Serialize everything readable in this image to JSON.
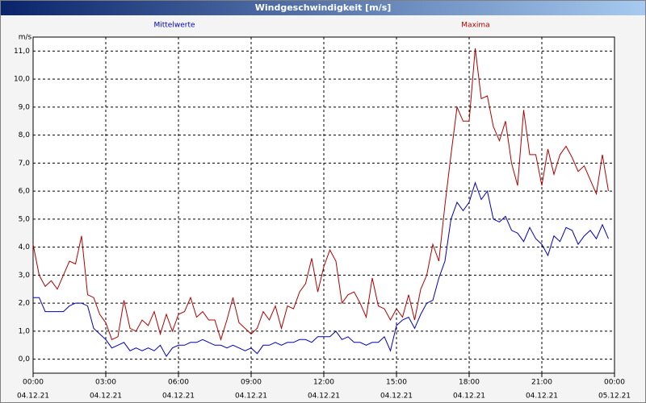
{
  "chart_data": {
    "type": "line",
    "title": "Windgeschwindigkeit [m/s]",
    "y_label": "m/s",
    "x": [
      0,
      0.25,
      0.5,
      0.75,
      1,
      1.25,
      1.5,
      1.75,
      2,
      2.25,
      2.5,
      2.75,
      3,
      3.25,
      3.5,
      3.75,
      4,
      4.25,
      4.5,
      4.75,
      5,
      5.25,
      5.5,
      5.75,
      6,
      6.25,
      6.5,
      6.75,
      7,
      7.25,
      7.5,
      7.75,
      8,
      8.25,
      8.5,
      8.75,
      9,
      9.25,
      9.5,
      9.75,
      10,
      10.25,
      10.5,
      10.75,
      11,
      11.25,
      11.5,
      11.75,
      12,
      12.25,
      12.5,
      12.75,
      13,
      13.25,
      13.5,
      13.75,
      14,
      14.25,
      14.5,
      14.75,
      15,
      15.25,
      15.5,
      15.75,
      16,
      16.25,
      16.5,
      16.75,
      17,
      17.25,
      17.5,
      17.75,
      18,
      18.25,
      18.5,
      18.75,
      19,
      19.25,
      19.5,
      19.75,
      20,
      20.25,
      20.5,
      20.75,
      21,
      21.25,
      21.5,
      21.75,
      22,
      22.25,
      22.5,
      22.75,
      23,
      23.25,
      23.5,
      23.75
    ],
    "series": [
      {
        "name": "Mittelwerte",
        "color": "#0000c0",
        "values": [
          2.2,
          2.2,
          1.7,
          1.7,
          1.7,
          1.7,
          1.9,
          2.0,
          2.0,
          1.9,
          1.1,
          0.9,
          0.7,
          0.4,
          0.5,
          0.6,
          0.3,
          0.4,
          0.3,
          0.4,
          0.3,
          0.5,
          0.1,
          0.4,
          0.5,
          0.5,
          0.6,
          0.6,
          0.7,
          0.6,
          0.5,
          0.5,
          0.4,
          0.5,
          0.4,
          0.3,
          0.4,
          0.2,
          0.5,
          0.5,
          0.6,
          0.5,
          0.6,
          0.6,
          0.7,
          0.7,
          0.6,
          0.8,
          0.8,
          0.8,
          1.0,
          0.7,
          0.8,
          0.6,
          0.6,
          0.5,
          0.6,
          0.6,
          0.8,
          0.3,
          1.2,
          1.4,
          1.5,
          1.1,
          1.6,
          2.0,
          2.1,
          2.9,
          3.5,
          5.0,
          5.6,
          5.3,
          5.6,
          6.3,
          5.7,
          6.0,
          5.0,
          4.9,
          5.1,
          4.6,
          4.5,
          4.2,
          4.7,
          4.3,
          4.1,
          3.7,
          4.4,
          4.2,
          4.7,
          4.6,
          4.1,
          4.4,
          4.6,
          4.3,
          4.8,
          4.3
        ]
      },
      {
        "name": "Maxima",
        "color": "#b00000",
        "values": [
          4.1,
          3.0,
          2.6,
          2.8,
          2.5,
          3.0,
          3.5,
          3.4,
          4.4,
          2.3,
          2.2,
          1.6,
          1.3,
          0.7,
          0.8,
          2.1,
          1.1,
          1.0,
          1.4,
          1.2,
          1.7,
          0.9,
          1.6,
          1.0,
          1.6,
          1.7,
          2.2,
          1.5,
          1.7,
          1.4,
          1.4,
          0.7,
          1.4,
          2.2,
          1.3,
          1.1,
          0.9,
          1.1,
          1.7,
          1.4,
          1.9,
          1.1,
          1.9,
          1.8,
          2.4,
          2.7,
          3.6,
          2.4,
          3.3,
          3.9,
          3.5,
          2.0,
          2.3,
          2.4,
          2.0,
          1.5,
          2.9,
          1.9,
          1.8,
          1.4,
          1.8,
          1.5,
          2.3,
          1.4,
          2.5,
          3.0,
          4.1,
          3.5,
          5.5,
          7.3,
          9.0,
          8.5,
          8.5,
          11.1,
          9.3,
          9.4,
          8.3,
          7.8,
          8.5,
          7.0,
          6.2,
          8.9,
          7.3,
          7.3,
          6.2,
          7.5,
          6.6,
          7.3,
          7.6,
          7.2,
          6.7,
          6.9,
          6.4,
          5.9,
          7.3,
          6.0
        ]
      }
    ],
    "xlim": [
      0,
      24
    ],
    "ylim": [
      -0.5,
      11.5
    ],
    "xticks": [
      {
        "value": 0,
        "label": "00:00"
      },
      {
        "value": 3,
        "label": "03:00"
      },
      {
        "value": 6,
        "label": "06:00"
      },
      {
        "value": 9,
        "label": "09:00"
      },
      {
        "value": 12,
        "label": "12:00"
      },
      {
        "value": 15,
        "label": "15:00"
      },
      {
        "value": 18,
        "label": "18:00"
      },
      {
        "value": 21,
        "label": "21:00"
      },
      {
        "value": 24,
        "label": "00:00"
      }
    ],
    "xtick_dates": [
      "04.12.21",
      "04.12.21",
      "04.12.21",
      "04.12.21",
      "04.12.21",
      "04.12.21",
      "04.12.21",
      "04.12.21",
      "05.12.21"
    ],
    "yticks": [
      {
        "value": 0,
        "label": "0,0"
      },
      {
        "value": 1,
        "label": "1,0"
      },
      {
        "value": 2,
        "label": "2,0"
      },
      {
        "value": 3,
        "label": "3,0"
      },
      {
        "value": 4,
        "label": "4,0"
      },
      {
        "value": 5,
        "label": "5,0"
      },
      {
        "value": 6,
        "label": "6,0"
      },
      {
        "value": 7,
        "label": "7,0"
      },
      {
        "value": 8,
        "label": "8,0"
      },
      {
        "value": 9,
        "label": "9,0"
      },
      {
        "value": 10,
        "label": "10,0"
      },
      {
        "value": 11,
        "label": "11,0"
      }
    ],
    "grid": true
  }
}
